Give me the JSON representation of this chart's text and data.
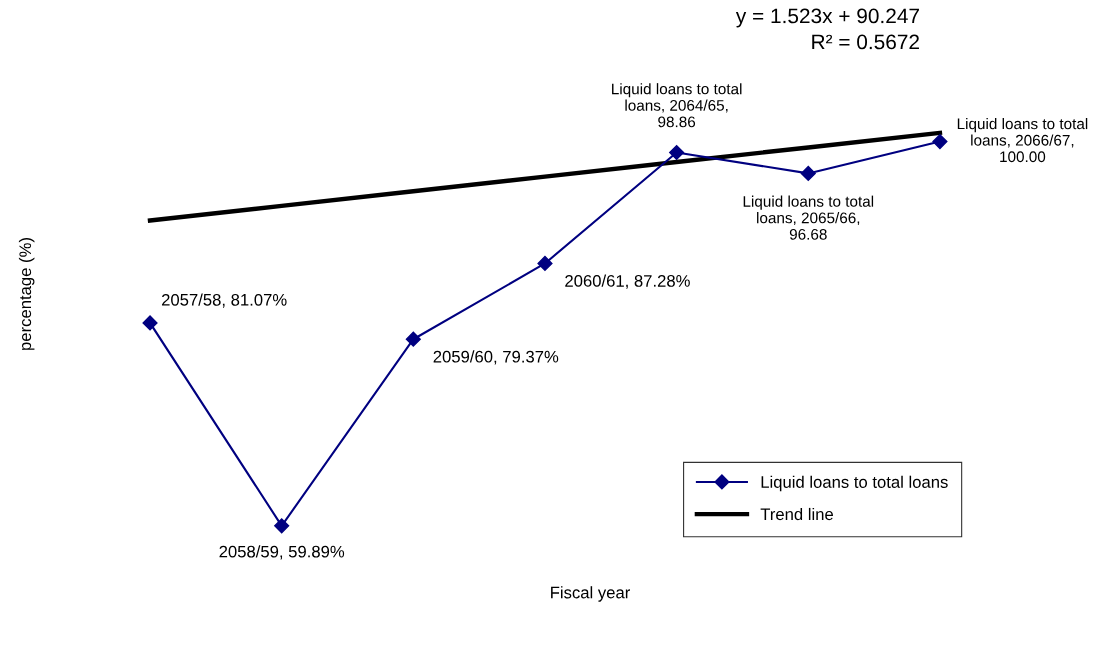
{
  "chart_data": {
    "type": "line",
    "xlabel": "Fiscal year",
    "ylabel": "percentage (%)",
    "categories": [
      null,
      null,
      null,
      null,
      null,
      null,
      null
    ],
    "series": [
      {
        "name": "Liquid loans to total loans",
        "color": "#000080",
        "marker": "diamond",
        "values": [
          81.07,
          59.89,
          79.37,
          87.28,
          98.86,
          96.68,
          100.0
        ],
        "value_labels": [
          "2057/58, 81.07%",
          "2058/59, 59.89%",
          "2059/60, 79.37%",
          "2060/61, 87.28%",
          "Liquid loans to total\nloans, 2064/65,\n98.86",
          "Liquid loans to total\nloans, 2065/66,\n96.68",
          "Liquid loans to total\nloans, 2066/67,\n100.00"
        ]
      },
      {
        "name": "Trend line",
        "color": "#000000",
        "marker": "none",
        "values": [
          91.77,
          93.293,
          94.816,
          96.339,
          97.862,
          99.385,
          100.908
        ]
      }
    ],
    "annotations": [
      "y = 1.523x + 90.247",
      "R² = 0.5672"
    ],
    "legend": "bottom right",
    "grid": false,
    "line_style": "solid"
  }
}
